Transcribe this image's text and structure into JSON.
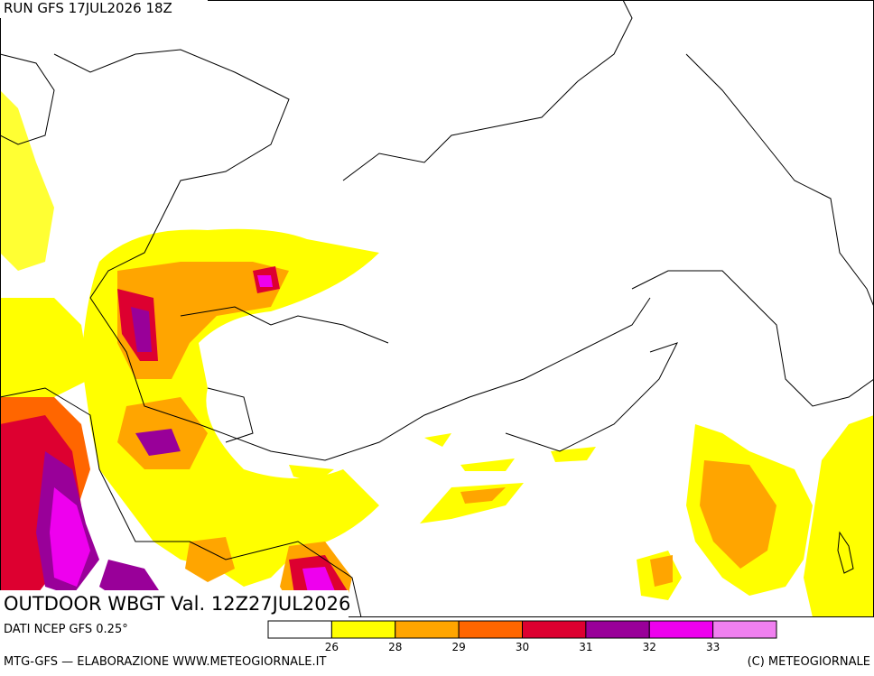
{
  "header": {
    "run": "RUN GFS 17JUL2026 18Z",
    "title": "OUTDOOR WBGT Val. 12Z27JUL2026",
    "source": "DATI NCEP GFS 0.25°"
  },
  "legend": {
    "colors": [
      "#ffffff",
      "#ffff00",
      "#ffa500",
      "#ff6600",
      "#dd0030",
      "#990099",
      "#ee00ee",
      "#f080f0"
    ],
    "ticks": [
      26,
      28,
      29,
      30,
      31,
      32,
      33
    ]
  },
  "footer": {
    "credit": "MTG-GFS — ELABORAZIONE WWW.METEOGIORNALE.IT",
    "copyright": "(C) METEOGIORNALE"
  }
}
